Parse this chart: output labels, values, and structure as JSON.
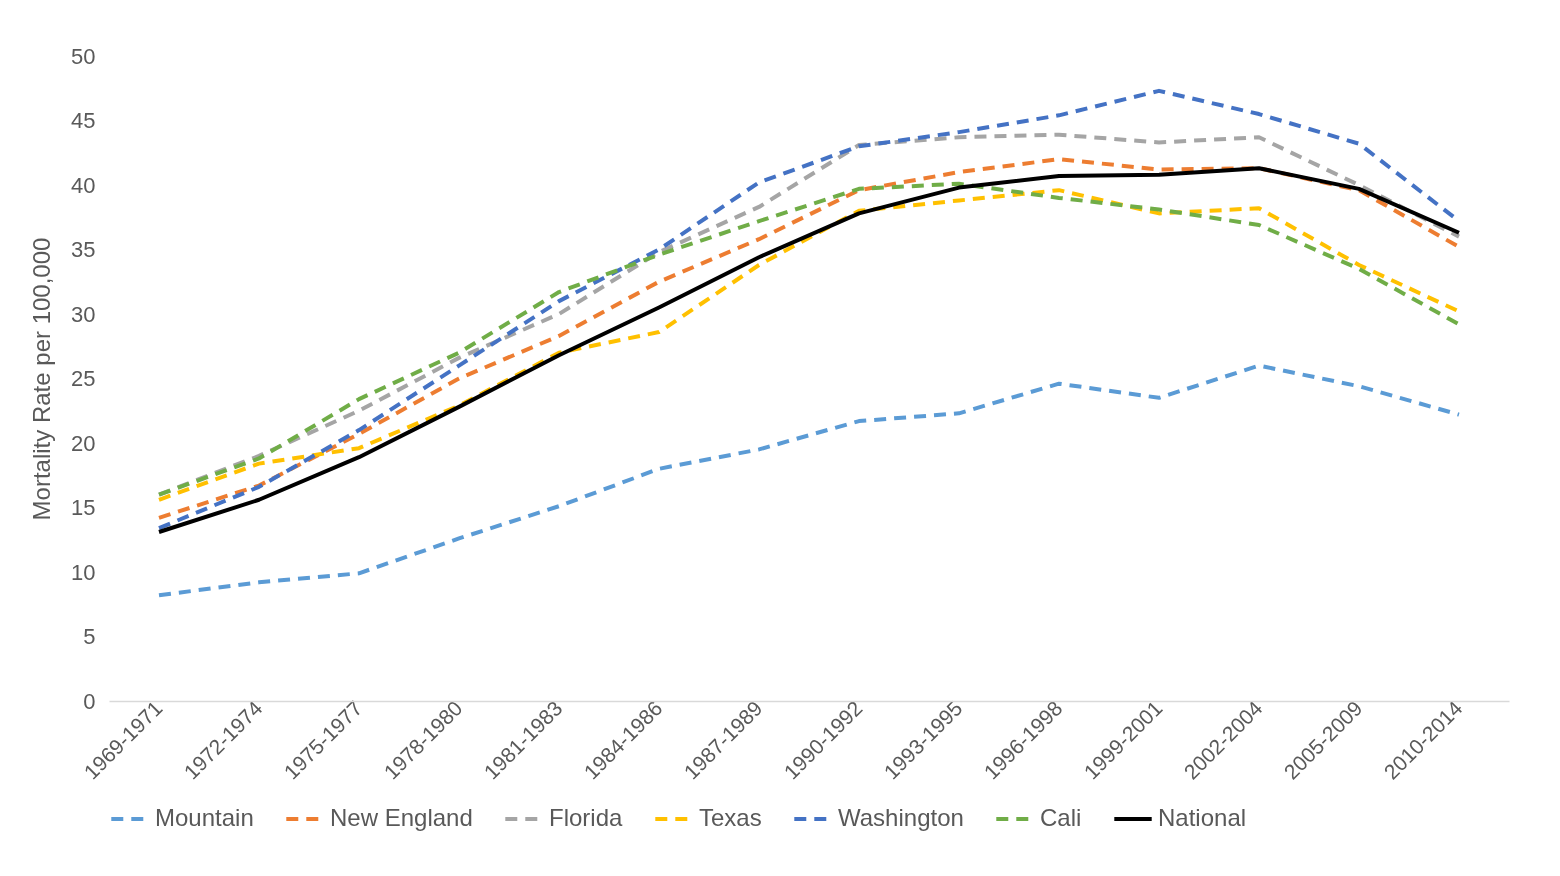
{
  "chart_data": {
    "type": "line",
    "ylabel": "Mortality Rate per 100,000",
    "categories": [
      "1969-1971",
      "1972-1974",
      "1975-1977",
      "1978-1980",
      "1981-1983",
      "1984-1986",
      "1987-1989",
      "1990-1992",
      "1993-1995",
      "1996-1998",
      "1999-2001",
      "2002-2004",
      "2005-2009",
      "2010-2014"
    ],
    "ylim": [
      0,
      50
    ],
    "yticks": [
      0,
      5,
      10,
      15,
      20,
      25,
      30,
      35,
      40,
      45,
      50
    ],
    "grid": false,
    "legend": "bottom",
    "marker": "none",
    "series": [
      {
        "name": "Mountain",
        "color": "#5b9bd5",
        "line_style": "dashed",
        "values": [
          8.2,
          9.2,
          9.9,
          12.6,
          15.1,
          18.0,
          19.5,
          21.7,
          22.3,
          24.6,
          23.5,
          26.0,
          24.4,
          22.2
        ]
      },
      {
        "name": "New England",
        "color": "#ed7d31",
        "line_style": "dashed",
        "values": [
          14.2,
          16.7,
          20.7,
          25.0,
          28.3,
          32.5,
          35.8,
          39.6,
          41.0,
          42.0,
          41.2,
          41.3,
          39.6,
          35.2
        ]
      },
      {
        "name": "Florida",
        "color": "#a5a5a5",
        "line_style": "dashed",
        "values": [
          16.0,
          19.0,
          22.5,
          26.6,
          30.0,
          34.8,
          38.3,
          43.1,
          43.7,
          43.9,
          43.3,
          43.7,
          40.0,
          36.0
        ]
      },
      {
        "name": "Texas",
        "color": "#ffc000",
        "line_style": "dashed",
        "values": [
          15.6,
          18.4,
          19.6,
          22.9,
          27.0,
          28.6,
          33.8,
          38.0,
          38.8,
          39.6,
          37.8,
          38.2,
          33.8,
          30.2
        ]
      },
      {
        "name": "Washington",
        "color": "#4472c4",
        "line_style": "dashed",
        "values": [
          13.4,
          16.6,
          21.0,
          26.0,
          31.0,
          35.0,
          40.2,
          43.0,
          44.1,
          45.4,
          47.3,
          45.5,
          43.2,
          37.2
        ]
      },
      {
        "name": "Cali",
        "color": "#70ad47",
        "line_style": "dashed",
        "values": [
          16.0,
          18.8,
          23.4,
          27.0,
          31.7,
          34.6,
          37.2,
          39.7,
          40.1,
          39.0,
          38.1,
          36.9,
          33.5,
          29.2
        ]
      },
      {
        "name": "National",
        "color": "#000000",
        "line_style": "solid",
        "values": [
          13.1,
          15.6,
          18.9,
          22.8,
          26.8,
          30.5,
          34.4,
          37.8,
          39.8,
          40.7,
          40.8,
          41.3,
          39.7,
          36.3
        ]
      }
    ]
  }
}
